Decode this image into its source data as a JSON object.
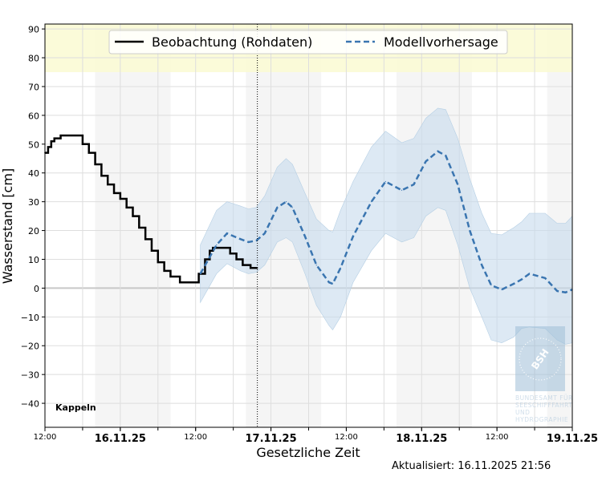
{
  "chart_data": {
    "type": "line",
    "xlabel": "Gesetzliche Zeit",
    "ylabel": "Wasserstand [cm]",
    "location": "Kappeln",
    "updated": "Aktualisiert: 16.11.2025 21:56",
    "xlim": [
      "2025-11-15 12:00",
      "2025-11-19 00:00"
    ],
    "ylim": [
      -48,
      92
    ],
    "yticks": [
      -40,
      -30,
      -20,
      -10,
      0,
      10,
      20,
      30,
      40,
      50,
      60,
      70,
      80,
      90
    ],
    "xticks": [
      {
        "t": "2025-11-15 12:00",
        "label": "12:00",
        "bold": false
      },
      {
        "t": "2025-11-16 00:00",
        "label": "16.11.25",
        "bold": true
      },
      {
        "t": "2025-11-16 12:00",
        "label": "12:00",
        "bold": false
      },
      {
        "t": "2025-11-17 00:00",
        "label": "17.11.25",
        "bold": true
      },
      {
        "t": "2025-11-17 12:00",
        "label": "12:00",
        "bold": false
      },
      {
        "t": "2025-11-18 00:00",
        "label": "18.11.25",
        "bold": true
      },
      {
        "t": "2025-11-18 12:00",
        "label": "12:00",
        "bold": false
      },
      {
        "t": "2025-11-19 00:00",
        "label": "19.11.25",
        "bold": true
      }
    ],
    "grid": true,
    "legend_placement": "top-center",
    "now": "2025-11-16 21:50",
    "warning_band": {
      "from": 75,
      "color": "#fafad2"
    },
    "night_shading": [
      [
        "2025-11-15 20:00",
        "2025-11-16 08:00"
      ],
      [
        "2025-11-16 20:00",
        "2025-11-17 08:00"
      ],
      [
        "2025-11-17 20:00",
        "2025-11-18 08:00"
      ],
      [
        "2025-11-18 20:00",
        "2025-11-19 00:00"
      ]
    ],
    "series": [
      {
        "name": "Beobachtung (Rohdaten)",
        "color": "#000000",
        "style": "solid",
        "points": [
          [
            "2025-11-15 12:00",
            47
          ],
          [
            "2025-11-15 12:30",
            49
          ],
          [
            "2025-11-15 13:00",
            51
          ],
          [
            "2025-11-15 13:30",
            52
          ],
          [
            "2025-11-15 14:30",
            53
          ],
          [
            "2025-11-15 17:15",
            53
          ],
          [
            "2025-11-15 18:00",
            50
          ],
          [
            "2025-11-15 19:00",
            47
          ],
          [
            "2025-11-15 20:00",
            43
          ],
          [
            "2025-11-15 21:00",
            39
          ],
          [
            "2025-11-15 22:00",
            36
          ],
          [
            "2025-11-15 23:00",
            33
          ],
          [
            "2025-11-16 00:00",
            31
          ],
          [
            "2025-11-16 01:00",
            28
          ],
          [
            "2025-11-16 02:00",
            25
          ],
          [
            "2025-11-16 03:00",
            21
          ],
          [
            "2025-11-16 04:00",
            17
          ],
          [
            "2025-11-16 05:00",
            13
          ],
          [
            "2025-11-16 06:00",
            9
          ],
          [
            "2025-11-16 07:00",
            6
          ],
          [
            "2025-11-16 08:00",
            4
          ],
          [
            "2025-11-16 09:30",
            2
          ],
          [
            "2025-11-16 11:30",
            2
          ],
          [
            "2025-11-16 12:30",
            5
          ],
          [
            "2025-11-16 13:30",
            10
          ],
          [
            "2025-11-16 14:15",
            13
          ],
          [
            "2025-11-16 14:45",
            14
          ],
          [
            "2025-11-16 16:30",
            14
          ],
          [
            "2025-11-16 17:30",
            12
          ],
          [
            "2025-11-16 18:30",
            10
          ],
          [
            "2025-11-16 19:30",
            8
          ],
          [
            "2025-11-16 20:30",
            8
          ],
          [
            "2025-11-16 20:45",
            7
          ],
          [
            "2025-11-16 21:50",
            7
          ]
        ]
      },
      {
        "name": "Modellvorhersage",
        "color": "#3a75b0",
        "style": "dashed",
        "band_color": "#c6dbec",
        "points": [
          [
            "2025-11-16 12:45",
            5,
            -5,
            15
          ],
          [
            "2025-11-16 15:20",
            15,
            5,
            27
          ],
          [
            "2025-11-16 17:00",
            19,
            8.5,
            30
          ],
          [
            "2025-11-16 19:10",
            17,
            6,
            28.5
          ],
          [
            "2025-11-16 20:25",
            16,
            5,
            27.5
          ],
          [
            "2025-11-16 21:40",
            16.5,
            5.5,
            28
          ],
          [
            "2025-11-16 23:00",
            19,
            8,
            32
          ],
          [
            "2025-11-17 01:00",
            28,
            16,
            42
          ],
          [
            "2025-11-17 02:25",
            30,
            17.5,
            45
          ],
          [
            "2025-11-17 03:25",
            28,
            16,
            43
          ],
          [
            "2025-11-17 05:25",
            18,
            5,
            33
          ],
          [
            "2025-11-17 07:15",
            8,
            -6,
            24
          ],
          [
            "2025-11-17 09:15",
            2,
            -13,
            20
          ],
          [
            "2025-11-17 09:50",
            1.5,
            -14.5,
            19.5
          ],
          [
            "2025-11-17 11:05",
            7,
            -10,
            27
          ],
          [
            "2025-11-17 13:05",
            18,
            2,
            37
          ],
          [
            "2025-11-17 16:00",
            30,
            13,
            49
          ],
          [
            "2025-11-17 18:15",
            37,
            19,
            54.5
          ],
          [
            "2025-11-17 20:50",
            34,
            16,
            50.5
          ],
          [
            "2025-11-17 22:45",
            36,
            17.5,
            52
          ],
          [
            "2025-11-18 00:40",
            44,
            25,
            59
          ],
          [
            "2025-11-18 02:35",
            47.5,
            28,
            62.5
          ],
          [
            "2025-11-18 03:50",
            46,
            27,
            62
          ],
          [
            "2025-11-18 05:45",
            36,
            15,
            52
          ],
          [
            "2025-11-18 07:40",
            20,
            0,
            38
          ],
          [
            "2025-11-18 09:35",
            8,
            -10,
            26
          ],
          [
            "2025-11-18 11:05",
            1,
            -18,
            19
          ],
          [
            "2025-11-18 12:45",
            -0.5,
            -19,
            18.5
          ],
          [
            "2025-11-18 14:40",
            1.5,
            -17,
            21
          ],
          [
            "2025-11-18 15:55",
            3,
            -14,
            23
          ],
          [
            "2025-11-18 17:10",
            5,
            -13.5,
            26
          ],
          [
            "2025-11-18 19:40",
            3.5,
            -14,
            26
          ],
          [
            "2025-11-18 21:35",
            -1,
            -18,
            22.5
          ],
          [
            "2025-11-18 22:55",
            -1.5,
            -19.5,
            22.5
          ],
          [
            "2025-11-19 00:00",
            -0.5,
            -19,
            25
          ]
        ]
      }
    ]
  },
  "logo": {
    "mark": "BSH",
    "lines": [
      "BUNDESAMT FÜR",
      "SEESCHIFFFAHRT",
      "UND",
      "HYDROGRAPHIE"
    ]
  }
}
